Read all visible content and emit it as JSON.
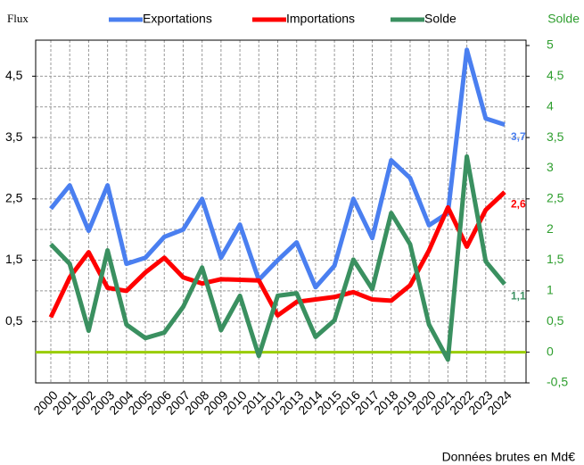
{
  "chart_data": {
    "type": "line",
    "ylabel": "Flux",
    "y2label": "Solde",
    "note": "Données brutes en Md€",
    "categories": [
      "2000",
      "2001",
      "2002",
      "2003",
      "2004",
      "2005",
      "2006",
      "2007",
      "2008",
      "2009",
      "2010",
      "2011",
      "2012",
      "2013",
      "2014",
      "2015",
      "2016",
      "2017",
      "2018",
      "2019",
      "2020",
      "2021",
      "2022",
      "2023",
      "2024"
    ],
    "series": [
      {
        "name": "Exportations",
        "color": "#4a7ff0",
        "values": [
          2.34,
          2.72,
          1.98,
          2.72,
          1.44,
          1.54,
          1.88,
          2.0,
          2.5,
          1.54,
          2.08,
          1.18,
          1.5,
          1.79,
          1.06,
          1.41,
          2.5,
          1.86,
          3.13,
          2.84,
          2.07,
          2.27,
          4.93,
          3.81,
          3.71
        ],
        "value_labels": [
          null,
          null,
          null,
          null,
          null,
          null,
          null,
          null,
          null,
          null,
          null,
          null,
          null,
          null,
          null,
          null,
          null,
          null,
          null,
          null,
          null,
          null,
          null,
          null,
          "3,7"
        ]
      },
      {
        "name": "Importations",
        "color": "#ff0000",
        "values": [
          0.57,
          1.22,
          1.63,
          1.05,
          1.0,
          1.3,
          1.54,
          1.22,
          1.12,
          1.19,
          1.18,
          1.17,
          0.6,
          0.82,
          0.86,
          0.9,
          0.98,
          0.86,
          0.84,
          1.09,
          1.66,
          2.36,
          1.72,
          2.32,
          2.61
        ],
        "value_labels": [
          null,
          null,
          null,
          null,
          null,
          null,
          null,
          null,
          null,
          null,
          null,
          null,
          null,
          null,
          null,
          null,
          null,
          null,
          null,
          null,
          null,
          null,
          null,
          null,
          "2,6"
        ]
      },
      {
        "name": "Solde",
        "color": "#3a9060",
        "axis": "y2",
        "values": [
          1.76,
          1.44,
          0.35,
          1.66,
          0.45,
          0.23,
          0.32,
          0.74,
          1.38,
          0.36,
          0.92,
          -0.06,
          0.92,
          0.96,
          0.25,
          0.52,
          1.51,
          1.03,
          2.27,
          1.76,
          0.45,
          -0.12,
          3.19,
          1.48,
          1.11
        ],
        "value_labels": [
          null,
          null,
          null,
          null,
          null,
          null,
          null,
          null,
          null,
          null,
          null,
          null,
          null,
          null,
          null,
          null,
          null,
          null,
          null,
          null,
          null,
          null,
          null,
          null,
          "1,1"
        ]
      }
    ],
    "ylim": [
      -0.5,
      5
    ],
    "yticks": [
      {
        "value": 0.5,
        "label": "0,5"
      },
      {
        "value": 1.5,
        "label": "1,5"
      },
      {
        "value": 2.5,
        "label": "2,5"
      },
      {
        "value": 3.5,
        "label": "3,5"
      },
      {
        "value": 4.5,
        "label": "4,5"
      }
    ],
    "y2lim": [
      -0.5,
      5
    ],
    "y2ticks": [
      5,
      {
        "value": 4.5,
        "label": "4,5"
      },
      4,
      {
        "value": 3.5,
        "label": "3,5"
      },
      3,
      {
        "value": 2.5,
        "label": "2,5"
      },
      2,
      {
        "value": 1.5,
        "label": "1,5"
      },
      1,
      {
        "value": 0.5,
        "label": "0,5"
      },
      0,
      {
        "value": -0.5,
        "label": "-0,5"
      }
    ],
    "y2_color": "#2e9e2e",
    "zero_line_color": "#99cc00",
    "grid": true
  }
}
